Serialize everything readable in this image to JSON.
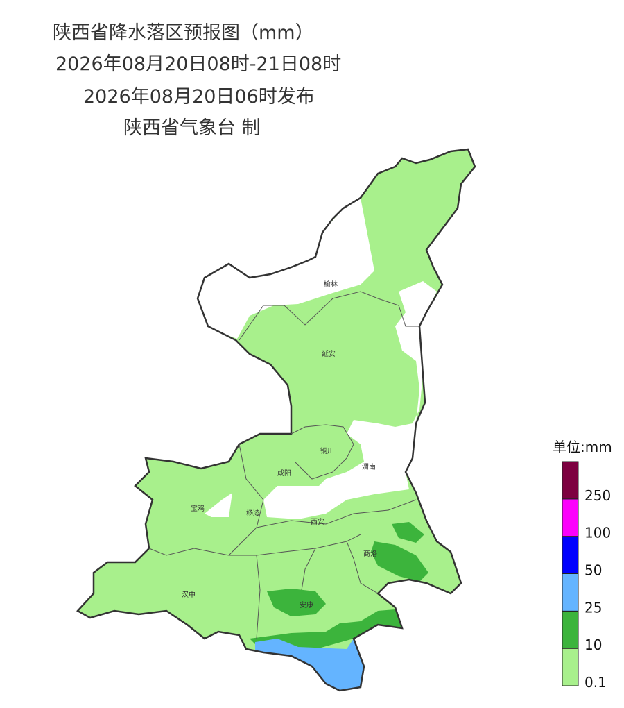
{
  "header": {
    "title": "陕西省降水落区预报图（mm）",
    "period": "2026年08月20日08时-21日08时",
    "issued": "2026年08月20日06时发布",
    "producer": "陕西省气象台 制"
  },
  "cities": [
    "榆林",
    "延安",
    "铜川",
    "渭南",
    "咸阳",
    "宝鸡",
    "杨凌",
    "西安",
    "商洛",
    "汉中",
    "安康"
  ],
  "legend": {
    "unit": "单位:mm",
    "labels": [
      "0.1",
      "10",
      "25",
      "50",
      "100",
      "250"
    ],
    "colors": [
      "#a8f08c",
      "#3cb43c",
      "#64b4ff",
      "#0000fe",
      "#fc00fc",
      "#7d0040"
    ]
  }
}
